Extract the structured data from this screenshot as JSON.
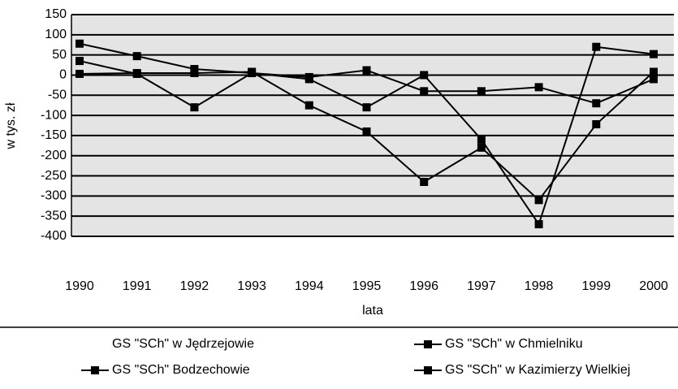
{
  "chart_data": {
    "type": "line",
    "y_label": "w tys. zł",
    "x_label": "lata",
    "categories": [
      "1990",
      "1991",
      "1992",
      "1993",
      "1994",
      "1995",
      "1996",
      "1997",
      "1998",
      "1999",
      "2000"
    ],
    "series": [
      {
        "name": "GS \"SCh\" w Jędrzejowie",
        "color": "none",
        "values": [
          null,
          null,
          null,
          null,
          null,
          null,
          null,
          null,
          null,
          null,
          null
        ]
      },
      {
        "name": "GS \"SCh\" w Chmielniku",
        "color": "#000000",
        "values": [
          78,
          47,
          15,
          5,
          -5,
          12,
          -40,
          -40,
          -30,
          -70,
          -10
        ]
      },
      {
        "name": "GS \"SCh\"  Bodzechowie",
        "color": "#000000",
        "values": [
          35,
          3,
          -80,
          5,
          -10,
          -80,
          0,
          -160,
          -370,
          70,
          52
        ]
      },
      {
        "name": "GS \"SCh\" w Kazimierzy Wielkiej",
        "color": "#000000",
        "values": [
          3,
          5,
          5,
          8,
          -75,
          -140,
          -265,
          -180,
          -310,
          -122,
          8
        ]
      }
    ],
    "ylim": [
      -400,
      150
    ],
    "yticks": [
      -400,
      -350,
      -300,
      -250,
      -200,
      -150,
      -100,
      -50,
      0,
      50,
      100,
      150
    ],
    "grid": true
  }
}
